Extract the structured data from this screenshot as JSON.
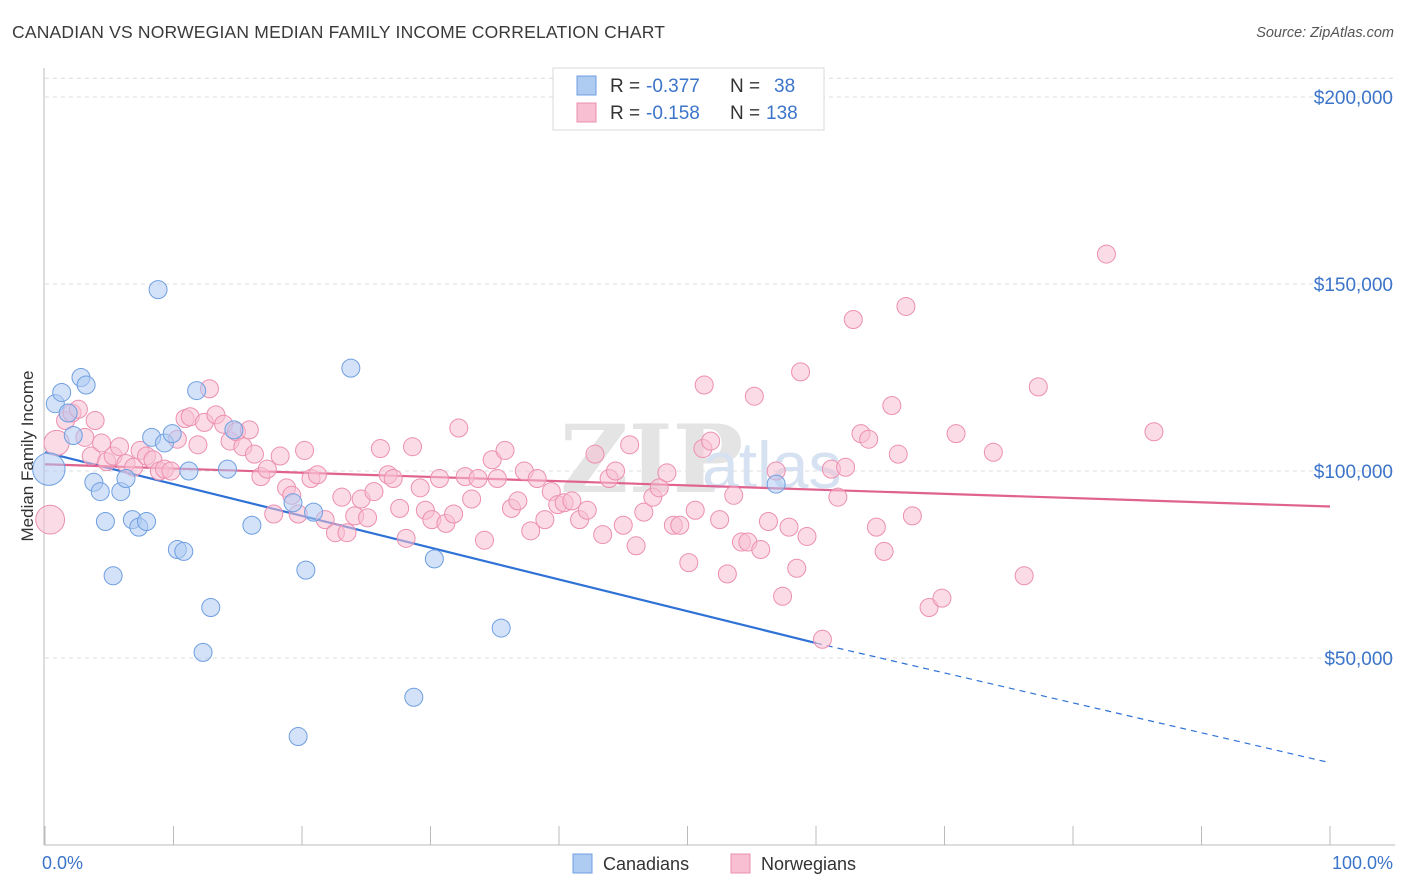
{
  "title": "CANADIAN VS NORWEGIAN MEDIAN FAMILY INCOME CORRELATION CHART",
  "source": "Source: ZipAtlas.com",
  "colors": {
    "canadians_fill": "#aecbf2",
    "canadians_stroke": "#6f9fe0",
    "canadians_line": "#2f72d6",
    "norwegians_fill": "#f8bfd2",
    "norwegians_stroke": "#ec8fb0",
    "norwegians_line": "#e0628e",
    "axis_label": "#3b74c9",
    "grid": "#dcdcdc"
  },
  "legend": {
    "rows": [
      {
        "r_label": "R =",
        "r_value": "-0.377",
        "n_label": "N =",
        "n_value": "38"
      },
      {
        "r_label": "R =",
        "r_value": "-0.158",
        "n_label": "N =",
        "n_value": "138"
      }
    ]
  },
  "bottom_legend": [
    "Canadians",
    "Norwegians"
  ],
  "chart_data": {
    "type": "scatter",
    "title": "CANADIAN VS NORWEGIAN MEDIAN FAMILY INCOME CORRELATION CHART",
    "xlabel": "",
    "ylabel": "Median Family Income",
    "xlim": [
      0,
      100
    ],
    "ylim": [
      0,
      210000
    ],
    "x_tick_labels": [
      "0.0%",
      "100.0%"
    ],
    "y_ticks": [
      50000,
      100000,
      150000,
      200000
    ],
    "y_tick_labels": [
      "$50,000",
      "$100,000",
      "$150,000",
      "$200,000"
    ],
    "grid": true,
    "legend_position": "top-center",
    "series": [
      {
        "name": "Canadians",
        "R": -0.377,
        "N": 38,
        "trend": {
          "x0": 0,
          "y0": 105000,
          "x1": 60,
          "y1": 54000,
          "dashed_to_x": 100,
          "dashed_to_y": 22000
        },
        "points": [
          [
            0.3,
            100500,
            1.8
          ],
          [
            0.8,
            118000,
            1
          ],
          [
            1.3,
            121000,
            1
          ],
          [
            1.8,
            115500,
            1
          ],
          [
            2.2,
            109500,
            1
          ],
          [
            2.8,
            125000,
            1
          ],
          [
            3.2,
            123000,
            1
          ],
          [
            3.8,
            97000,
            1
          ],
          [
            4.3,
            94500,
            1
          ],
          [
            4.7,
            86500,
            1
          ],
          [
            5.3,
            72000,
            1
          ],
          [
            5.9,
            94500,
            1
          ],
          [
            6.3,
            98000,
            1
          ],
          [
            6.8,
            87000,
            1
          ],
          [
            7.3,
            85000,
            1
          ],
          [
            7.9,
            86500,
            1
          ],
          [
            8.3,
            109000,
            1
          ],
          [
            8.8,
            148500,
            1
          ],
          [
            9.3,
            107500,
            1
          ],
          [
            9.9,
            110000,
            1
          ],
          [
            10.3,
            79000,
            1
          ],
          [
            10.8,
            78500,
            1
          ],
          [
            11.2,
            100000,
            1
          ],
          [
            11.8,
            121500,
            1
          ],
          [
            12.3,
            51500,
            1
          ],
          [
            12.9,
            63500,
            1
          ],
          [
            14.2,
            100500,
            1
          ],
          [
            14.7,
            111000,
            1
          ],
          [
            16.1,
            85500,
            1
          ],
          [
            19.3,
            91500,
            1
          ],
          [
            19.7,
            29000,
            1
          ],
          [
            20.3,
            73500,
            1
          ],
          [
            20.9,
            89000,
            1
          ],
          [
            23.8,
            127500,
            1
          ],
          [
            28.7,
            39500,
            1
          ],
          [
            30.3,
            76500,
            1
          ],
          [
            35.5,
            58000,
            1
          ],
          [
            56.9,
            96500,
            1
          ]
        ]
      },
      {
        "name": "Norwegians",
        "R": -0.158,
        "N": 138,
        "trend": {
          "x0": 0,
          "y0": 101800,
          "x1": 100,
          "y1": 90500
        },
        "points": [
          [
            0.4,
            87000,
            1.6
          ],
          [
            0.9,
            107500,
            1.4
          ],
          [
            1.6,
            113500,
            1
          ],
          [
            2.1,
            115500,
            1
          ],
          [
            2.6,
            116500,
            1
          ],
          [
            3.1,
            109000,
            1
          ],
          [
            3.6,
            104000,
            1
          ],
          [
            3.9,
            113500,
            1
          ],
          [
            4.4,
            107500,
            1
          ],
          [
            4.8,
            102500,
            1
          ],
          [
            5.3,
            104000,
            1
          ],
          [
            5.8,
            106500,
            1
          ],
          [
            6.3,
            102000,
            1
          ],
          [
            6.9,
            101000,
            1
          ],
          [
            7.4,
            105500,
            1
          ],
          [
            7.9,
            104000,
            1
          ],
          [
            8.4,
            103000,
            1
          ],
          [
            8.9,
            100000,
            1
          ],
          [
            9.3,
            100500,
            1
          ],
          [
            9.8,
            100000,
            1
          ],
          [
            10.3,
            108500,
            1
          ],
          [
            10.9,
            114000,
            1
          ],
          [
            11.3,
            114500,
            1
          ],
          [
            11.9,
            107000,
            1
          ],
          [
            12.4,
            113000,
            1
          ],
          [
            12.8,
            122000,
            1
          ],
          [
            13.3,
            115000,
            1
          ],
          [
            13.9,
            112500,
            1
          ],
          [
            14.4,
            108000,
            1
          ],
          [
            14.9,
            110500,
            1
          ],
          [
            15.4,
            106500,
            1
          ],
          [
            15.9,
            111000,
            1
          ],
          [
            16.3,
            104500,
            1
          ],
          [
            16.8,
            98500,
            1
          ],
          [
            17.3,
            100500,
            1
          ],
          [
            17.8,
            88500,
            1
          ],
          [
            18.3,
            104000,
            1
          ],
          [
            18.8,
            95500,
            1
          ],
          [
            19.2,
            93500,
            1
          ],
          [
            19.7,
            88500,
            1
          ],
          [
            20.2,
            105500,
            1
          ],
          [
            20.7,
            98000,
            1
          ],
          [
            21.2,
            99000,
            1
          ],
          [
            21.8,
            87000,
            1
          ],
          [
            22.6,
            83500,
            1
          ],
          [
            23.1,
            93000,
            1
          ],
          [
            23.5,
            83500,
            1
          ],
          [
            24.1,
            88000,
            1
          ],
          [
            24.6,
            92500,
            1
          ],
          [
            25.1,
            87500,
            1
          ],
          [
            25.6,
            94500,
            1
          ],
          [
            26.1,
            106000,
            1
          ],
          [
            26.7,
            99000,
            1
          ],
          [
            27.1,
            98000,
            1
          ],
          [
            27.6,
            90000,
            1
          ],
          [
            28.1,
            82000,
            1
          ],
          [
            28.6,
            106500,
            1
          ],
          [
            29.2,
            95500,
            1
          ],
          [
            29.6,
            89500,
            1
          ],
          [
            30.1,
            87000,
            1
          ],
          [
            30.7,
            98000,
            1
          ],
          [
            31.2,
            86000,
            1
          ],
          [
            31.8,
            88500,
            1
          ],
          [
            32.2,
            111500,
            1
          ],
          [
            32.7,
            98500,
            1
          ],
          [
            33.2,
            92500,
            1
          ],
          [
            33.7,
            98000,
            1
          ],
          [
            34.2,
            81500,
            1
          ],
          [
            34.8,
            103000,
            1
          ],
          [
            35.2,
            98000,
            1
          ],
          [
            35.8,
            105500,
            1
          ],
          [
            36.3,
            90000,
            1
          ],
          [
            36.8,
            92000,
            1
          ],
          [
            37.3,
            100000,
            1
          ],
          [
            37.8,
            84000,
            1
          ],
          [
            38.3,
            98000,
            1
          ],
          [
            38.9,
            87000,
            1
          ],
          [
            39.4,
            94500,
            1
          ],
          [
            39.9,
            91000,
            1
          ],
          [
            40.4,
            91500,
            1
          ],
          [
            41.0,
            92000,
            1
          ],
          [
            41.6,
            87000,
            1
          ],
          [
            42.2,
            89500,
            1
          ],
          [
            42.8,
            104500,
            1
          ],
          [
            43.4,
            83000,
            1
          ],
          [
            43.9,
            98000,
            1
          ],
          [
            44.4,
            100000,
            1
          ],
          [
            45.0,
            85500,
            1
          ],
          [
            45.5,
            107000,
            1
          ],
          [
            46.0,
            80000,
            1
          ],
          [
            46.6,
            89000,
            1
          ],
          [
            47.3,
            93000,
            1
          ],
          [
            47.8,
            95500,
            1
          ],
          [
            48.4,
            99500,
            1
          ],
          [
            48.9,
            85500,
            1
          ],
          [
            49.4,
            85500,
            1
          ],
          [
            50.1,
            75500,
            1
          ],
          [
            50.6,
            89500,
            1
          ],
          [
            51.2,
            106000,
            1
          ],
          [
            51.8,
            108000,
            1
          ],
          [
            51.3,
            123000,
            1
          ],
          [
            52.5,
            87000,
            1
          ],
          [
            53.1,
            72500,
            1
          ],
          [
            53.6,
            93500,
            1
          ],
          [
            54.2,
            81000,
            1
          ],
          [
            54.7,
            81000,
            1
          ],
          [
            55.2,
            120000,
            1
          ],
          [
            55.7,
            79000,
            1
          ],
          [
            56.3,
            86500,
            1
          ],
          [
            56.9,
            100000,
            1
          ],
          [
            57.4,
            66500,
            1
          ],
          [
            57.9,
            85000,
            1
          ],
          [
            58.5,
            74000,
            1
          ],
          [
            58.8,
            126500,
            1
          ],
          [
            59.3,
            82500,
            1
          ],
          [
            60.5,
            55000,
            1
          ],
          [
            61.2,
            100500,
            1
          ],
          [
            61.7,
            93000,
            1
          ],
          [
            62.3,
            101000,
            1
          ],
          [
            62.9,
            140500,
            1
          ],
          [
            63.5,
            110000,
            1
          ],
          [
            64.1,
            108500,
            1
          ],
          [
            64.7,
            85000,
            1
          ],
          [
            65.3,
            78500,
            1
          ],
          [
            65.9,
            117500,
            1
          ],
          [
            66.4,
            104500,
            1
          ],
          [
            67.0,
            144000,
            1
          ],
          [
            67.5,
            88000,
            1
          ],
          [
            68.8,
            63500,
            1
          ],
          [
            69.8,
            66000,
            1
          ],
          [
            70.9,
            110000,
            1
          ],
          [
            73.8,
            105000,
            1
          ],
          [
            76.2,
            72000,
            1
          ],
          [
            77.3,
            122500,
            1
          ],
          [
            82.6,
            158000,
            1
          ],
          [
            86.3,
            110500,
            1
          ]
        ]
      }
    ]
  }
}
